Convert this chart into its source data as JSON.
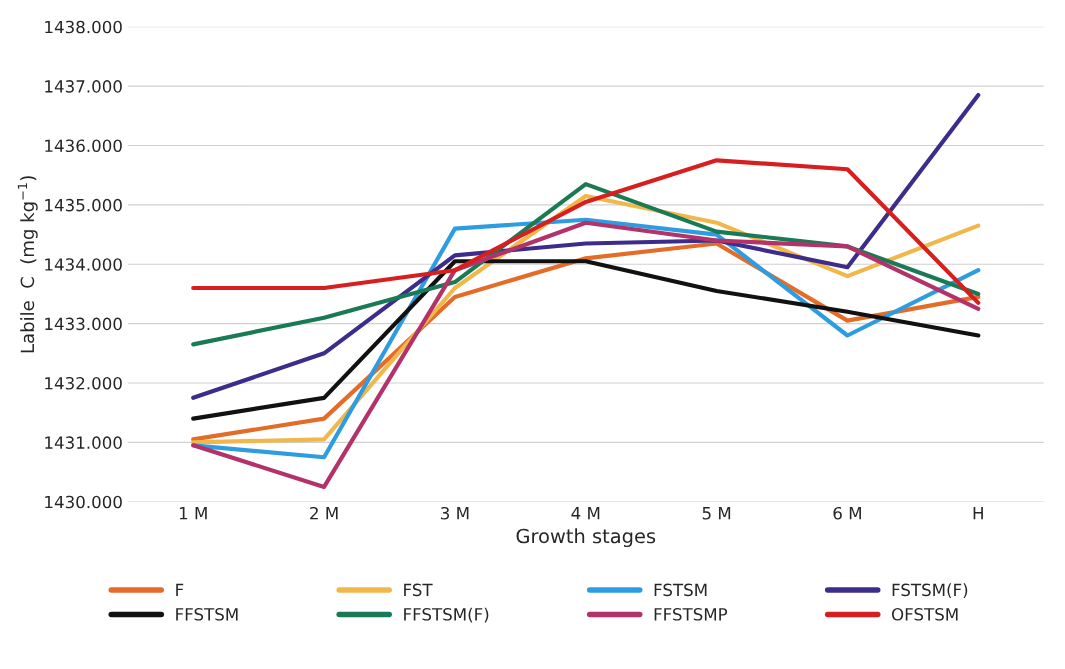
{
  "chart_data": {
    "type": "line",
    "xlabel": "Growth stages",
    "ylabel": "Labile  C  (mg kg$^{−1}$)",
    "categories": [
      "1 M",
      "2 M",
      "3 M",
      "4 M",
      "5 M",
      "6 M",
      "H"
    ],
    "ylim": [
      1430,
      1438
    ],
    "yticks": [
      {
        "value": 1430,
        "label": "1430.000"
      },
      {
        "value": 1431,
        "label": "1431.000"
      },
      {
        "value": 1432,
        "label": "1432.000"
      },
      {
        "value": 1433,
        "label": "1433.000"
      },
      {
        "value": 1434,
        "label": "1434.000"
      },
      {
        "value": 1435,
        "label": "1435.000"
      },
      {
        "value": 1436,
        "label": "1436.000"
      },
      {
        "value": 1437,
        "label": "1437.000"
      },
      {
        "value": 1438,
        "label": "1438.000"
      }
    ],
    "grid": "y",
    "legend": "bottom",
    "marker": "none",
    "line_style": "solid",
    "series": [
      {
        "name": "F",
        "color": "#e46c29",
        "values": [
          1431.05,
          1431.4,
          1433.45,
          1434.1,
          1434.35,
          1433.05,
          1433.45
        ]
      },
      {
        "name": "FST",
        "color": "#f0b74a",
        "values": [
          1431.0,
          1431.05,
          1433.6,
          1435.15,
          1434.7,
          1433.8,
          1434.65
        ]
      },
      {
        "name": "FSTSM",
        "color": "#2e9ce0",
        "values": [
          1430.95,
          1430.75,
          1434.6,
          1434.75,
          1434.5,
          1432.8,
          1433.9
        ]
      },
      {
        "name": "FSTSM(F)",
        "color": "#3d2c8a",
        "values": [
          1431.75,
          1432.5,
          1434.15,
          1434.35,
          1434.4,
          1433.95,
          1436.85
        ]
      },
      {
        "name": "FFSTSM",
        "color": "#111111",
        "values": [
          1431.4,
          1431.75,
          1434.05,
          1434.05,
          1433.55,
          1433.2,
          1432.8
        ]
      },
      {
        "name": "FFSTSM(F)",
        "color": "#1a7a55",
        "values": [
          1432.65,
          1433.1,
          1433.7,
          1435.35,
          1434.55,
          1434.3,
          1433.5
        ]
      },
      {
        "name": "FFSTSMP",
        "color": "#b3326a",
        "values": [
          1430.95,
          1430.25,
          1433.9,
          1434.7,
          1434.4,
          1434.3,
          1433.25
        ]
      },
      {
        "name": "OFSTSM",
        "color": "#d81f1f",
        "values": [
          1433.6,
          1433.6,
          1433.9,
          1435.05,
          1435.75,
          1435.6,
          1433.35
        ]
      }
    ]
  }
}
